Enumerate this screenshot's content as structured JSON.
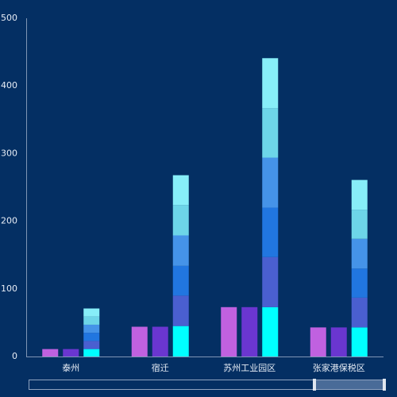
{
  "chart_data": {
    "type": "bar",
    "categories": [
      "泰州",
      "宿迁",
      "苏州工业园区",
      "张家港保税区"
    ],
    "series": [
      {
        "color": "#c061e0",
        "values": [
          11,
          44,
          73,
          43
        ]
      },
      {
        "color": "#6a36d0",
        "values": [
          11,
          44,
          73,
          43
        ]
      },
      {
        "color": "#00ffff",
        "stacked": true,
        "values": [
          11,
          45,
          73,
          43
        ]
      },
      {
        "color": "#4a5fd0",
        "stacked": true,
        "values": [
          12,
          45,
          74,
          44
        ]
      },
      {
        "color": "#2176e0",
        "stacked": true,
        "values": [
          12,
          44,
          73,
          43
        ]
      },
      {
        "color": "#4593e8",
        "stacked": true,
        "values": [
          12,
          45,
          74,
          44
        ]
      },
      {
        "color": "#6dd5e8",
        "stacked": true,
        "values": [
          12,
          45,
          73,
          43
        ]
      },
      {
        "color": "#87eef8",
        "stacked": true,
        "values": [
          12,
          44,
          74,
          44
        ]
      }
    ],
    "ylim": [
      0,
      500
    ],
    "yticks": [
      0,
      100,
      200,
      300,
      400,
      500
    ],
    "grid": false
  }
}
